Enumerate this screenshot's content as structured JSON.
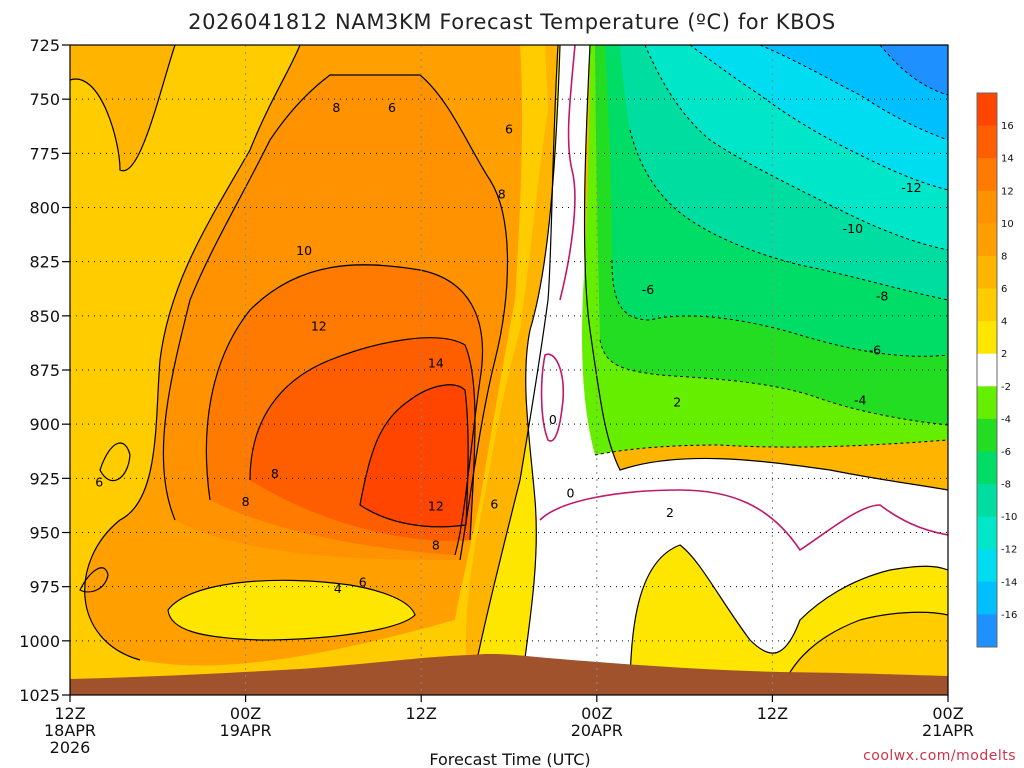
{
  "page": {
    "title": "2026041812 NAM3KM Forecast Temperature (ºC) for KBOS",
    "credit": "coolwx.com/modelts"
  },
  "chart_data": {
    "type": "heatmap",
    "subtype": "time-height contour (pressure vs forecast time)",
    "title": "2026041812 NAM3KM Forecast Temperature (ºC) for KBOS",
    "xlabel": "Forecast Time (UTC)",
    "ylabel": "",
    "x_axis": {
      "unit": "hours since 12Z 18APR",
      "range": [
        0,
        60
      ],
      "ticks": [
        {
          "hour": 0,
          "label": "12Z",
          "date": "18APR",
          "year": "2026"
        },
        {
          "hour": 12,
          "label": "00Z",
          "date": "19APR",
          "year": ""
        },
        {
          "hour": 24,
          "label": "12Z",
          "date": "",
          "year": ""
        },
        {
          "hour": 36,
          "label": "00Z",
          "date": "20APR",
          "year": ""
        },
        {
          "hour": 48,
          "label": "12Z",
          "date": "",
          "year": ""
        },
        {
          "hour": 60,
          "label": "00Z",
          "date": "21APR",
          "year": ""
        }
      ]
    },
    "y_axis": {
      "unit": "hPa",
      "range": [
        725,
        1025
      ],
      "inverted": true,
      "ticks": [
        "725",
        "750",
        "775",
        "800",
        "825",
        "850",
        "875",
        "900",
        "925",
        "950",
        "975",
        "1000",
        "1025"
      ]
    },
    "grid": true,
    "colorbar": {
      "position": "right",
      "bins": [
        {
          "range": [
            16,
            18
          ],
          "color": "#ff4500"
        },
        {
          "range": [
            14,
            16
          ],
          "color": "#ff5e00"
        },
        {
          "range": [
            12,
            14
          ],
          "color": "#ff7a00"
        },
        {
          "range": [
            10,
            12
          ],
          "color": "#ff9200"
        },
        {
          "range": [
            8,
            10
          ],
          "color": "#ffa000"
        },
        {
          "range": [
            6,
            8
          ],
          "color": "#ffb400"
        },
        {
          "range": [
            4,
            6
          ],
          "color": "#ffcc00"
        },
        {
          "range": [
            2,
            4
          ],
          "color": "#ffe600"
        },
        {
          "range": [
            -2,
            2
          ],
          "color": "#ffffff"
        },
        {
          "range": [
            -4,
            -2
          ],
          "color": "#66ee00"
        },
        {
          "range": [
            -6,
            -4
          ],
          "color": "#22dd22"
        },
        {
          "range": [
            -8,
            -6
          ],
          "color": "#00dd66"
        },
        {
          "range": [
            -10,
            -8
          ],
          "color": "#00dda0"
        },
        {
          "range": [
            -12,
            -10
          ],
          "color": "#00e6c8"
        },
        {
          "range": [
            -14,
            -12
          ],
          "color": "#00dcf0"
        },
        {
          "range": [
            -16,
            -14
          ],
          "color": "#00bfff"
        },
        {
          "range": [
            -18,
            -16
          ],
          "color": "#1e90ff"
        }
      ],
      "labels": [
        "16",
        "14",
        "12",
        "10",
        "8",
        "6",
        "4",
        "2",
        "-2",
        "-4",
        "-6",
        "-8",
        "-10",
        "-12",
        "-14",
        "-16"
      ]
    },
    "contour_labels": [
      {
        "value": "8",
        "hour": 18.2,
        "p": 754
      },
      {
        "value": "6",
        "hour": 22.0,
        "p": 754
      },
      {
        "value": "6",
        "hour": 30.0,
        "p": 764
      },
      {
        "value": "8",
        "hour": 29.5,
        "p": 794
      },
      {
        "value": "10",
        "hour": 16.0,
        "p": 820
      },
      {
        "value": "12",
        "hour": 17.0,
        "p": 855
      },
      {
        "value": "14",
        "hour": 25.0,
        "p": 872
      },
      {
        "value": "12",
        "hour": 25.0,
        "p": 938
      },
      {
        "value": "8",
        "hour": 14.0,
        "p": 923
      },
      {
        "value": "8",
        "hour": 12.0,
        "p": 936
      },
      {
        "value": "8",
        "hour": 25.0,
        "p": 956
      },
      {
        "value": "6",
        "hour": 2.0,
        "p": 927
      },
      {
        "value": "6",
        "hour": 20.0,
        "p": 973
      },
      {
        "value": "4",
        "hour": 18.3,
        "p": 976
      },
      {
        "value": "6",
        "hour": 29.0,
        "p": 937
      },
      {
        "value": "0",
        "hour": 33.0,
        "p": 898
      },
      {
        "value": "0",
        "hour": 34.2,
        "p": 932
      },
      {
        "value": "2",
        "hour": 41.5,
        "p": 890
      },
      {
        "value": "2",
        "hour": 41.0,
        "p": 941
      },
      {
        "value": "-6",
        "hour": 39.5,
        "p": 838
      },
      {
        "value": "-10",
        "hour": 53.5,
        "p": 810
      },
      {
        "value": "-8",
        "hour": 55.5,
        "p": 841
      },
      {
        "value": "-6",
        "hour": 55.0,
        "p": 866
      },
      {
        "value": "-4",
        "hour": 54.0,
        "p": 889
      },
      {
        "value": "-12",
        "hour": 57.5,
        "p": 791
      }
    ],
    "terrain": {
      "color": "#a0522d",
      "surface_pressure_min": 1008,
      "surface_pressure_max": 1019
    }
  }
}
